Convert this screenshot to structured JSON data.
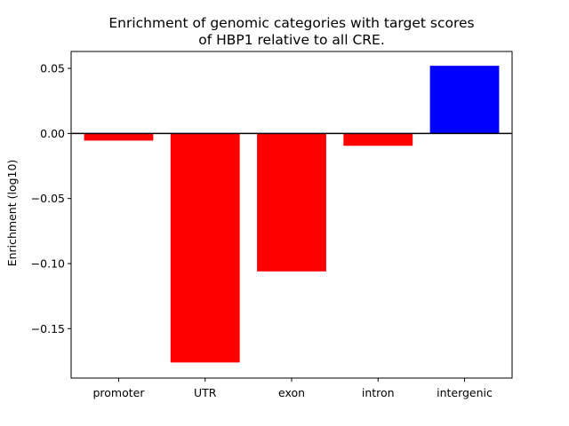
{
  "chart_data": {
    "type": "bar",
    "title": "Enrichment of genomic categories with target scores\nof HBP1 relative to all CRE.",
    "title_lines": [
      "Enrichment of genomic categories with target scores",
      "of HBP1 relative to all CRE."
    ],
    "xlabel": "",
    "ylabel": "Enrichment (log10)",
    "categories": [
      "promoter",
      "UTR",
      "exon",
      "intron",
      "intergenic"
    ],
    "values": [
      -0.0055,
      -0.176,
      -0.106,
      -0.0095,
      0.052
    ],
    "bar_colors": [
      "#ff0000",
      "#ff0000",
      "#ff0000",
      "#ff0000",
      "#0000ff"
    ],
    "yticks": [
      0.05,
      0.0,
      -0.05,
      -0.1,
      -0.15
    ],
    "ytick_labels": [
      "0.05",
      "0.00",
      "−0.05",
      "−0.10",
      "−0.15"
    ],
    "ylim": [
      -0.188,
      0.063
    ],
    "zero_line": true,
    "grid": false,
    "legend": "none"
  }
}
